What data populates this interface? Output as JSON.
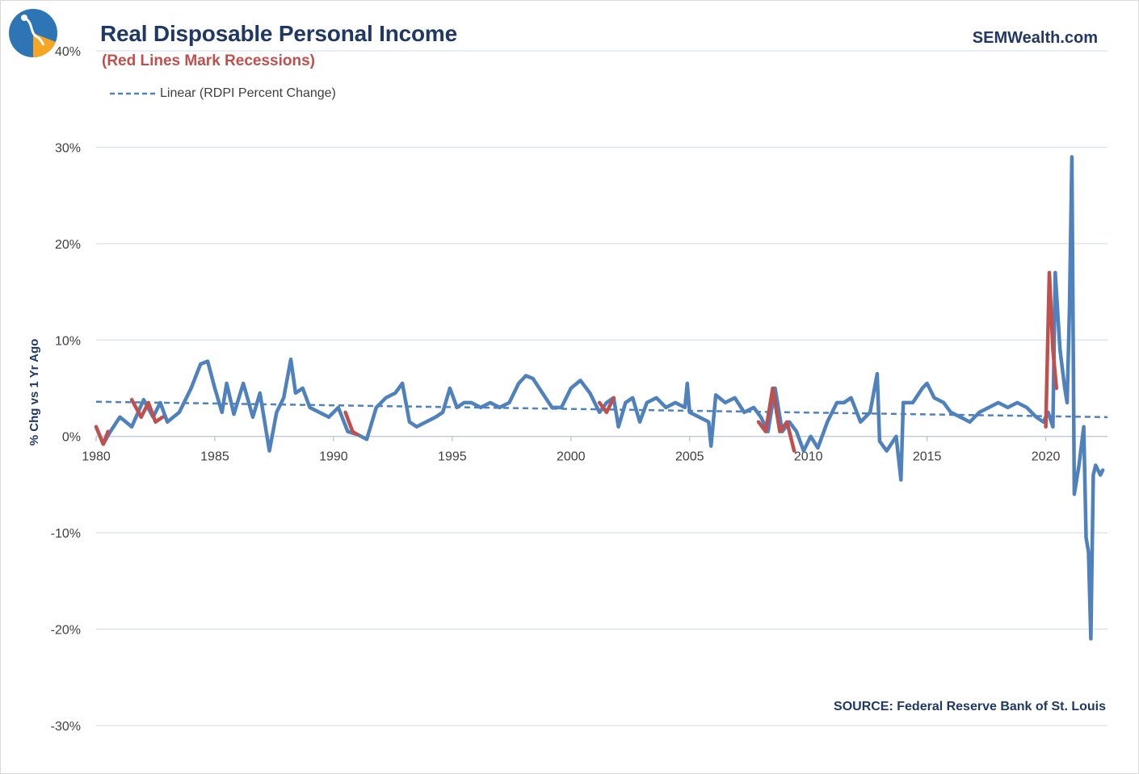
{
  "title": "Real Disposable Personal Income",
  "subtitle": "(Red Lines Mark Recessions)",
  "brand": "SEMWealth.com",
  "source": "SOURCE:  Federal Reserve Bank of St. Louis",
  "logo_icon": "semwealth-logo-icon",
  "colors": {
    "series": "#4f81bd",
    "recession": "#c0504d",
    "trend": "#4f81bd",
    "title": "#1f3864",
    "grid": "#d9e1ec"
  },
  "chart_data": {
    "type": "line",
    "title": "Real Disposable Personal Income",
    "subtitle": "(Red Lines Mark Recessions)",
    "xlabel": "",
    "ylabel": "% Chg vs 1 Yr Ago",
    "xlim": [
      1980,
      2022.6
    ],
    "ylim": [
      -30,
      40
    ],
    "y_ticks": [
      40,
      30,
      20,
      10,
      0,
      -10,
      -20,
      -30
    ],
    "y_tick_labels": [
      "40%",
      "30%",
      "20%",
      "10%",
      "0%",
      "-10%",
      "-20%",
      "-30%"
    ],
    "x_ticks": [
      1980,
      1985,
      1990,
      1995,
      2000,
      2005,
      2010,
      2015,
      2020
    ],
    "x_tick_labels": [
      "1980",
      "1985",
      "1990",
      "1995",
      "2000",
      "2005",
      "2010",
      "2015",
      "2020"
    ],
    "grid": true,
    "legend": {
      "position": "top-left",
      "entries": [
        "Linear (RDPI Percent Change)"
      ]
    },
    "series": [
      {
        "name": "RDPI Percent Change",
        "x": [
          1980.0,
          1980.3,
          1980.6,
          1981.0,
          1981.5,
          1982.0,
          1982.4,
          1982.7,
          1983.0,
          1983.5,
          1984.0,
          1984.4,
          1984.7,
          1985.0,
          1985.3,
          1985.5,
          1985.8,
          1986.2,
          1986.6,
          1986.9,
          1987.3,
          1987.6,
          1987.9,
          1988.2,
          1988.4,
          1988.7,
          1989.0,
          1989.4,
          1989.8,
          1990.2,
          1990.6,
          1991.0,
          1991.4,
          1991.8,
          1992.2,
          1992.6,
          1992.9,
          1993.2,
          1993.5,
          1993.9,
          1994.3,
          1994.6,
          1994.9,
          1995.2,
          1995.5,
          1995.8,
          1996.2,
          1996.6,
          1997.0,
          1997.4,
          1997.8,
          1998.1,
          1998.4,
          1998.8,
          1999.2,
          1999.6,
          2000.0,
          2000.4,
          2000.8,
          2001.2,
          2001.5,
          2001.8,
          2002.0,
          2002.3,
          2002.6,
          2002.9,
          2003.2,
          2003.6,
          2004.0,
          2004.4,
          2004.8,
          2004.9,
          2005.0,
          2005.4,
          2005.8,
          2005.9,
          2006.1,
          2006.5,
          2006.9,
          2007.3,
          2007.7,
          2008.0,
          2008.3,
          2008.6,
          2008.9,
          2009.2,
          2009.5,
          2009.8,
          2010.1,
          2010.4,
          2010.8,
          2011.2,
          2011.5,
          2011.8,
          2012.2,
          2012.6,
          2012.9,
          2013.0,
          2013.3,
          2013.7,
          2013.9,
          2014.0,
          2014.4,
          2014.8,
          2015.0,
          2015.3,
          2015.7,
          2016.0,
          2016.4,
          2016.8,
          2017.2,
          2017.6,
          2018.0,
          2018.4,
          2018.8,
          2019.2,
          2019.6,
          2019.9,
          2020.1,
          2020.3,
          2020.4,
          2020.6,
          2020.8,
          2020.9,
          2021.0,
          2021.1,
          2021.2,
          2021.4,
          2021.6,
          2021.7,
          2021.8,
          2021.9,
          2022.0,
          2022.1,
          2022.3,
          2022.4
        ],
        "y": [
          1.0,
          -0.8,
          0.5,
          2.0,
          1.0,
          3.8,
          2.0,
          3.5,
          1.5,
          2.5,
          5.0,
          7.5,
          7.8,
          5.0,
          2.5,
          5.5,
          2.3,
          5.5,
          2.0,
          4.5,
          -1.5,
          2.5,
          4.0,
          8.0,
          4.5,
          5.0,
          3.0,
          2.5,
          2.0,
          3.0,
          0.5,
          0.2,
          -0.3,
          3.0,
          4.0,
          4.5,
          5.5,
          1.5,
          1.0,
          1.5,
          2.0,
          2.5,
          5.0,
          3.0,
          3.5,
          3.5,
          3.0,
          3.5,
          3.0,
          3.5,
          5.5,
          6.3,
          6.0,
          4.5,
          3.0,
          3.0,
          5.0,
          5.8,
          4.5,
          2.5,
          3.5,
          4.0,
          1.0,
          3.5,
          4.0,
          1.5,
          3.5,
          4.0,
          3.0,
          3.5,
          3.0,
          5.5,
          2.5,
          2.0,
          1.5,
          -1.0,
          4.3,
          3.5,
          4.0,
          2.5,
          3.0,
          2.0,
          0.5,
          5.0,
          0.5,
          1.5,
          0.5,
          -1.5,
          0.0,
          -1.2,
          1.5,
          3.5,
          3.5,
          4.0,
          1.5,
          2.5,
          6.5,
          -0.5,
          -1.5,
          0.0,
          -4.5,
          3.5,
          3.5,
          5.0,
          5.5,
          4.0,
          3.5,
          2.5,
          2.0,
          1.5,
          2.5,
          3.0,
          3.5,
          3.0,
          3.5,
          3.0,
          2.0,
          1.5,
          2.5,
          1.0,
          17.0,
          9.0,
          5.0,
          3.5,
          13.5,
          29.0,
          -6.0,
          -3.0,
          1.0,
          -10.5,
          -12.0,
          -21.0,
          -4.0,
          -3.0,
          -4.0,
          -3.5
        ]
      },
      {
        "name": "Recessions",
        "segments": [
          {
            "x": [
              1980.0,
              1980.3,
              1980.5
            ],
            "y": [
              1.0,
              -0.8,
              0.5
            ]
          },
          {
            "x": [
              1981.5,
              1981.9,
              1982.2,
              1982.5,
              1982.8
            ],
            "y": [
              3.8,
              2.0,
              3.5,
              1.5,
              2.0
            ]
          },
          {
            "x": [
              1990.5,
              1990.8,
              1991.0
            ],
            "y": [
              2.5,
              0.5,
              0.2
            ]
          },
          {
            "x": [
              2001.2,
              2001.5,
              2001.8
            ],
            "y": [
              3.5,
              2.5,
              4.0
            ]
          },
          {
            "x": [
              2007.9,
              2008.2,
              2008.5,
              2008.8,
              2009.1,
              2009.4
            ],
            "y": [
              1.5,
              0.5,
              5.0,
              0.5,
              1.5,
              -1.5
            ]
          },
          {
            "x": [
              2020.0,
              2020.15,
              2020.3,
              2020.45
            ],
            "y": [
              1.0,
              17.0,
              9.0,
              5.0
            ]
          }
        ]
      }
    ],
    "trend": {
      "name": "Linear (RDPI Percent Change)",
      "x": [
        1980.0,
        2022.6
      ],
      "y": [
        3.6,
        2.0
      ]
    }
  }
}
